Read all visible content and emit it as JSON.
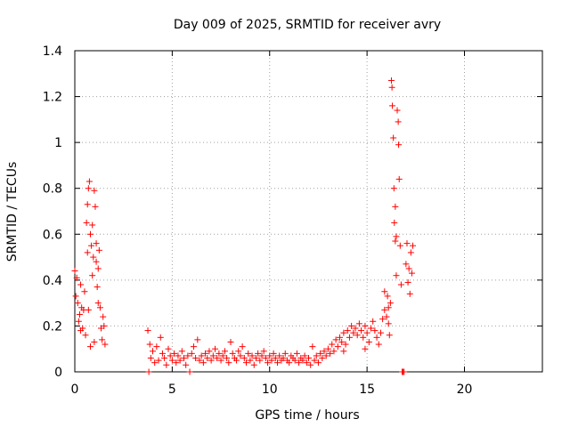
{
  "chart_data": {
    "type": "scatter",
    "title": "Day 009 of 2025, SRMTID for receiver avry",
    "xlabel": "GPS time / hours",
    "ylabel": "SRMTID / TECUs",
    "xlim": [
      0,
      24
    ],
    "ylim": [
      0,
      1.4
    ],
    "x_ticks": [
      "0",
      "5",
      "10",
      "15",
      "20"
    ],
    "y_ticks": [
      "0",
      "0.2",
      "0.4",
      "0.6",
      "0.8",
      "1",
      "1.2",
      "1.4"
    ],
    "grid": true,
    "marker": "plus",
    "color": "#ff0000",
    "series": [
      {
        "name": "SRMTID",
        "points": [
          [
            0.0,
            0.44
          ],
          [
            0.05,
            0.33
          ],
          [
            0.1,
            0.41
          ],
          [
            0.15,
            0.3
          ],
          [
            0.2,
            0.22
          ],
          [
            0.25,
            0.25
          ],
          [
            0.3,
            0.38
          ],
          [
            0.35,
            0.28
          ],
          [
            0.4,
            0.19
          ],
          [
            0.45,
            0.27
          ],
          [
            0.5,
            0.35
          ],
          [
            0.55,
            0.16
          ],
          [
            0.6,
            0.65
          ],
          [
            0.65,
            0.73
          ],
          [
            0.7,
            0.8
          ],
          [
            0.75,
            0.83
          ],
          [
            0.8,
            0.6
          ],
          [
            0.85,
            0.55
          ],
          [
            0.9,
            0.42
          ],
          [
            0.95,
            0.5
          ],
          [
            1.0,
            0.79
          ],
          [
            1.05,
            0.72
          ],
          [
            1.1,
            0.56
          ],
          [
            1.15,
            0.37
          ],
          [
            1.2,
            0.45
          ],
          [
            1.25,
            0.53
          ],
          [
            1.3,
            0.28
          ],
          [
            1.35,
            0.19
          ],
          [
            1.4,
            0.14
          ],
          [
            1.45,
            0.24
          ],
          [
            1.5,
            0.2
          ],
          [
            1.55,
            0.12
          ],
          [
            0.7,
            0.27
          ],
          [
            0.8,
            0.11
          ],
          [
            1.0,
            0.13
          ],
          [
            0.3,
            0.18
          ],
          [
            0.65,
            0.52
          ],
          [
            0.9,
            0.64
          ],
          [
            1.1,
            0.48
          ],
          [
            1.2,
            0.3
          ],
          [
            3.75,
            0.18
          ],
          [
            3.8,
            0.0
          ],
          [
            3.85,
            0.12
          ],
          [
            3.9,
            0.06
          ],
          [
            4.0,
            0.09
          ],
          [
            4.1,
            0.04
          ],
          [
            4.2,
            0.11
          ],
          [
            4.3,
            0.05
          ],
          [
            4.4,
            0.15
          ],
          [
            4.5,
            0.08
          ],
          [
            4.6,
            0.06
          ],
          [
            4.7,
            0.03
          ],
          [
            4.8,
            0.1
          ],
          [
            4.9,
            0.07
          ],
          [
            5.0,
            0.05
          ],
          [
            5.1,
            0.08
          ],
          [
            5.2,
            0.04
          ],
          [
            5.3,
            0.07
          ],
          [
            5.4,
            0.05
          ],
          [
            5.5,
            0.09
          ],
          [
            5.6,
            0.06
          ],
          [
            5.7,
            0.03
          ],
          [
            5.8,
            0.07
          ],
          [
            5.9,
            0.0
          ],
          [
            6.0,
            0.08
          ],
          [
            6.1,
            0.11
          ],
          [
            6.2,
            0.06
          ],
          [
            6.3,
            0.14
          ],
          [
            6.4,
            0.05
          ],
          [
            6.5,
            0.07
          ],
          [
            6.6,
            0.04
          ],
          [
            6.7,
            0.08
          ],
          [
            6.8,
            0.06
          ],
          [
            6.9,
            0.09
          ],
          [
            7.0,
            0.05
          ],
          [
            7.1,
            0.07
          ],
          [
            7.2,
            0.1
          ],
          [
            7.3,
            0.06
          ],
          [
            7.4,
            0.08
          ],
          [
            7.5,
            0.05
          ],
          [
            7.6,
            0.07
          ],
          [
            7.7,
            0.09
          ],
          [
            7.8,
            0.06
          ],
          [
            7.9,
            0.04
          ],
          [
            8.0,
            0.13
          ],
          [
            8.1,
            0.08
          ],
          [
            8.2,
            0.06
          ],
          [
            8.3,
            0.05
          ],
          [
            8.4,
            0.09
          ],
          [
            8.5,
            0.07
          ],
          [
            8.6,
            0.11
          ],
          [
            8.7,
            0.06
          ],
          [
            8.8,
            0.04
          ],
          [
            8.9,
            0.08
          ],
          [
            9.0,
            0.05
          ],
          [
            9.1,
            0.07
          ],
          [
            9.2,
            0.03
          ],
          [
            9.3,
            0.06
          ],
          [
            9.4,
            0.08
          ],
          [
            9.5,
            0.05
          ],
          [
            9.6,
            0.07
          ],
          [
            9.7,
            0.09
          ],
          [
            9.8,
            0.06
          ],
          [
            9.9,
            0.04
          ],
          [
            10.0,
            0.07
          ],
          [
            10.1,
            0.05
          ],
          [
            10.2,
            0.08
          ],
          [
            10.3,
            0.06
          ],
          [
            10.4,
            0.04
          ],
          [
            10.5,
            0.07
          ],
          [
            10.6,
            0.05
          ],
          [
            10.7,
            0.06
          ],
          [
            10.8,
            0.08
          ],
          [
            10.9,
            0.05
          ],
          [
            11.0,
            0.04
          ],
          [
            11.1,
            0.07
          ],
          [
            11.2,
            0.06
          ],
          [
            11.3,
            0.05
          ],
          [
            11.4,
            0.08
          ],
          [
            11.5,
            0.04
          ],
          [
            11.6,
            0.06
          ],
          [
            11.7,
            0.05
          ],
          [
            11.8,
            0.07
          ],
          [
            11.9,
            0.04
          ],
          [
            12.0,
            0.06
          ],
          [
            12.1,
            0.03
          ],
          [
            12.2,
            0.11
          ],
          [
            12.3,
            0.05
          ],
          [
            12.4,
            0.07
          ],
          [
            12.5,
            0.04
          ],
          [
            12.6,
            0.08
          ],
          [
            12.7,
            0.06
          ],
          [
            12.8,
            0.09
          ],
          [
            12.9,
            0.07
          ],
          [
            13.0,
            0.1
          ],
          [
            13.1,
            0.08
          ],
          [
            13.2,
            0.12
          ],
          [
            13.3,
            0.09
          ],
          [
            13.4,
            0.14
          ],
          [
            13.5,
            0.11
          ],
          [
            13.6,
            0.15
          ],
          [
            13.7,
            0.13
          ],
          [
            13.8,
            0.17
          ],
          [
            13.9,
            0.12
          ],
          [
            14.0,
            0.18
          ],
          [
            14.1,
            0.15
          ],
          [
            14.2,
            0.2
          ],
          [
            14.3,
            0.17
          ],
          [
            14.4,
            0.19
          ],
          [
            14.5,
            0.16
          ],
          [
            14.6,
            0.21
          ],
          [
            14.7,
            0.18
          ],
          [
            14.8,
            0.15
          ],
          [
            14.9,
            0.2
          ],
          [
            15.0,
            0.17
          ],
          [
            15.1,
            0.13
          ],
          [
            15.2,
            0.19
          ],
          [
            15.3,
            0.22
          ],
          [
            15.4,
            0.18
          ],
          [
            15.5,
            0.15
          ],
          [
            15.6,
            0.12
          ],
          [
            15.7,
            0.17
          ],
          [
            15.8,
            0.23
          ],
          [
            15.9,
            0.27
          ],
          [
            16.0,
            0.24
          ],
          [
            16.05,
            0.33
          ],
          [
            16.1,
            0.21
          ],
          [
            16.15,
            0.16
          ],
          [
            16.2,
            0.3
          ],
          [
            16.25,
            1.27
          ],
          [
            16.28,
            1.24
          ],
          [
            16.3,
            1.16
          ],
          [
            16.35,
            1.02
          ],
          [
            16.38,
            0.8
          ],
          [
            16.4,
            0.65
          ],
          [
            16.45,
            0.57
          ],
          [
            16.5,
            0.42
          ],
          [
            16.55,
            1.14
          ],
          [
            16.6,
            1.09
          ],
          [
            16.62,
            0.99
          ],
          [
            16.65,
            0.84
          ],
          [
            16.7,
            0.55
          ],
          [
            16.75,
            0.38
          ],
          [
            16.8,
            0.0
          ],
          [
            16.85,
            0.0
          ],
          [
            16.9,
            0.0
          ],
          [
            17.0,
            0.47
          ],
          [
            17.05,
            0.56
          ],
          [
            17.1,
            0.39
          ],
          [
            17.15,
            0.45
          ],
          [
            17.2,
            0.34
          ],
          [
            17.25,
            0.52
          ],
          [
            17.3,
            0.43
          ],
          [
            17.35,
            0.55
          ],
          [
            16.45,
            0.72
          ],
          [
            16.5,
            0.59
          ],
          [
            15.9,
            0.35
          ],
          [
            16.1,
            0.28
          ],
          [
            14.9,
            0.1
          ],
          [
            13.8,
            0.09
          ]
        ]
      }
    ]
  }
}
